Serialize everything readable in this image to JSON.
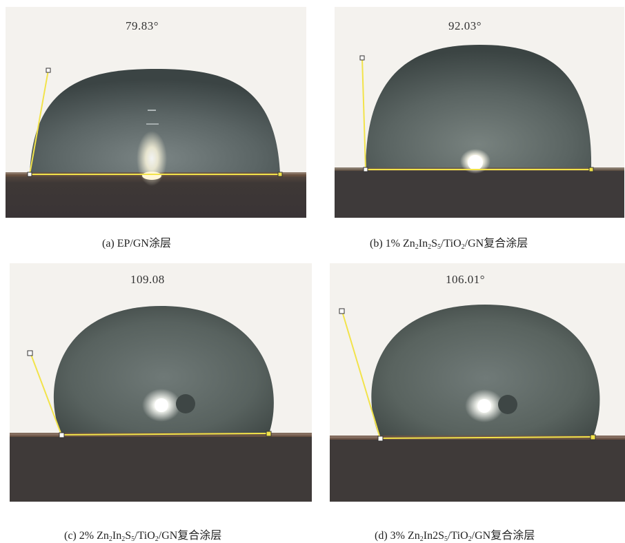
{
  "figure": {
    "panels": [
      {
        "id": "a",
        "angle": "79.83°",
        "caption": {
          "pre": "(a) EP/GN涂层",
          "parts": []
        }
      },
      {
        "id": "b",
        "angle": "92.03°",
        "caption": {
          "pre": "(b) 1% Zn",
          "parts": [
            {
              "sub": "2"
            },
            {
              "text": "In"
            },
            {
              "sub": "2"
            },
            {
              "text": "S"
            },
            {
              "sub": "5"
            },
            {
              "text": "/TiO"
            },
            {
              "sub": "2"
            },
            {
              "text": "/GN复合涂层"
            }
          ]
        }
      },
      {
        "id": "c",
        "angle": "109.08",
        "caption": {
          "pre": "(c) 2% Zn",
          "parts": [
            {
              "sub": "2"
            },
            {
              "text": "In"
            },
            {
              "sub": "2"
            },
            {
              "text": "S"
            },
            {
              "sub": "5"
            },
            {
              "text": "/TiO"
            },
            {
              "sub": "2"
            },
            {
              "text": "/GN复合涂层"
            }
          ]
        }
      },
      {
        "id": "d",
        "angle": "106.01°",
        "caption": {
          "pre": "(d) 3% Zn",
          "parts": [
            {
              "sub": "2"
            },
            {
              "text": "In2S"
            },
            {
              "sub": "5"
            },
            {
              "text": "/TiO"
            },
            {
              "sub": "2"
            },
            {
              "text": "/GN复合涂层"
            }
          ]
        }
      }
    ],
    "colors": {
      "background": "#f4f2ee",
      "droplet": "#5a6464",
      "substrate": "#3f3a38",
      "baseline": "#f2e34a"
    }
  }
}
